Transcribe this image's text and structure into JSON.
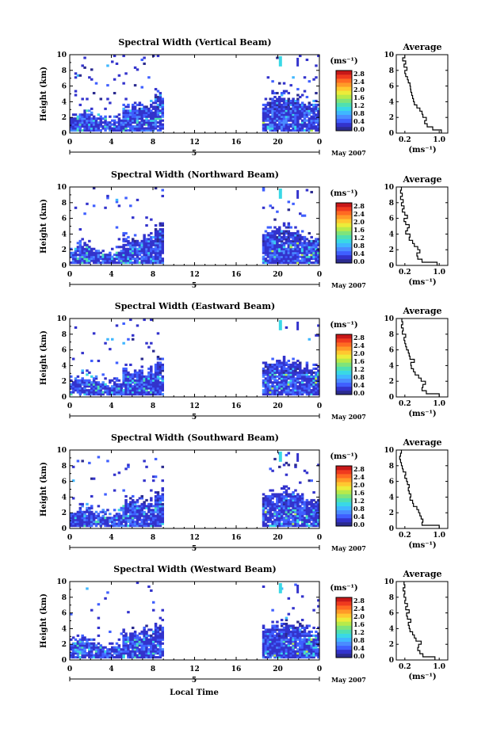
{
  "chart_data": [
    {
      "type": "heatmap",
      "title": "Spectral Width (Vertical Beam)",
      "ylabel": "Height (km)",
      "y_ticks": [
        "0",
        "2",
        "4",
        "6",
        "8",
        "10"
      ],
      "x_ticks": [
        "0",
        "4",
        "8",
        "12",
        "16",
        "20",
        "0"
      ],
      "day_label": "5",
      "month_label": "May 2007",
      "colorbar_unit": "(ms⁻¹)",
      "colorbar_ticks": [
        "2.8",
        "2.4",
        "2.0",
        "1.6",
        "1.2",
        "0.8",
        "0.4",
        "0.0"
      ],
      "data_windows_hours": [
        [
          0,
          9
        ],
        [
          18.5,
          24
        ]
      ],
      "profile": {
        "title": "Average",
        "x_ticks": [
          "0.2",
          "1.0"
        ],
        "xlabel": "(ms⁻¹)",
        "xlim": [
          0.0,
          1.2
        ],
        "ylim": [
          0,
          10
        ],
        "heights_km": [
          0.2,
          0.6,
          1.0,
          1.4,
          1.8,
          2.2,
          2.6,
          3.0,
          3.4,
          3.8,
          4.2,
          4.6,
          5.0,
          5.4,
          5.8,
          6.2,
          6.6,
          7.0,
          7.4,
          7.8,
          8.2,
          8.6,
          9.0,
          9.4,
          9.8
        ],
        "values": [
          1.05,
          0.85,
          0.72,
          0.66,
          0.7,
          0.62,
          0.6,
          0.55,
          0.48,
          0.42,
          0.4,
          0.38,
          0.36,
          0.34,
          0.33,
          0.32,
          0.28,
          0.26,
          0.22,
          0.2,
          0.25,
          0.18,
          0.22,
          0.15,
          0.2
        ]
      }
    },
    {
      "type": "heatmap",
      "title": "Spectral Width (Northward Beam)",
      "ylabel": "Height (km)",
      "y_ticks": [
        "0",
        "2",
        "4",
        "6",
        "8",
        "10"
      ],
      "x_ticks": [
        "0",
        "4",
        "8",
        "12",
        "16",
        "20",
        "0"
      ],
      "day_label": "5",
      "month_label": "May 2007",
      "colorbar_unit": "(ms⁻¹)",
      "colorbar_ticks": [
        "2.8",
        "2.4",
        "2.0",
        "1.6",
        "1.2",
        "0.8",
        "0.4",
        "0.0"
      ],
      "data_windows_hours": [
        [
          0,
          9
        ],
        [
          18.5,
          24
        ]
      ],
      "profile": {
        "title": "Average",
        "x_ticks": [
          "0.2",
          "1.0"
        ],
        "xlabel": "(ms⁻¹)",
        "xlim": [
          0.0,
          1.2
        ],
        "ylim": [
          0,
          10
        ],
        "heights_km": [
          0.2,
          0.6,
          1.0,
          1.4,
          1.8,
          2.2,
          2.6,
          3.0,
          3.4,
          3.8,
          4.2,
          4.6,
          5.0,
          5.4,
          5.8,
          6.2,
          6.6,
          7.0,
          7.4,
          7.8,
          8.2,
          8.6,
          9.0,
          9.4,
          9.8
        ],
        "values": [
          0.95,
          0.6,
          0.5,
          0.48,
          0.55,
          0.5,
          0.42,
          0.38,
          0.3,
          0.32,
          0.22,
          0.26,
          0.3,
          0.22,
          0.18,
          0.26,
          0.2,
          0.14,
          0.18,
          0.12,
          0.16,
          0.1,
          0.14,
          0.1,
          0.12
        ]
      }
    },
    {
      "type": "heatmap",
      "title": "Spectral Width (Eastward Beam)",
      "ylabel": "Height (km)",
      "y_ticks": [
        "0",
        "2",
        "4",
        "6",
        "8",
        "10"
      ],
      "x_ticks": [
        "0",
        "4",
        "8",
        "12",
        "16",
        "20",
        "0"
      ],
      "day_label": "5",
      "month_label": "May 2007",
      "colorbar_unit": "(ms⁻¹)",
      "colorbar_ticks": [
        "2.8",
        "2.4",
        "2.0",
        "1.6",
        "1.2",
        "0.8",
        "0.4",
        "0.0"
      ],
      "data_windows_hours": [
        [
          0,
          9
        ],
        [
          18.5,
          24
        ]
      ],
      "profile": {
        "title": "Average",
        "x_ticks": [
          "0.2",
          "1.0"
        ],
        "xlabel": "(ms⁻¹)",
        "xlim": [
          0.0,
          1.2
        ],
        "ylim": [
          0,
          10
        ],
        "heights_km": [
          0.2,
          0.6,
          1.0,
          1.4,
          1.8,
          2.2,
          2.6,
          3.0,
          3.4,
          3.8,
          4.2,
          4.6,
          5.0,
          5.4,
          5.8,
          6.2,
          6.6,
          7.0,
          7.4,
          7.8,
          8.2,
          8.6,
          9.0,
          9.4,
          9.8
        ],
        "values": [
          1.0,
          0.7,
          0.6,
          0.62,
          0.68,
          0.58,
          0.52,
          0.44,
          0.4,
          0.35,
          0.34,
          0.42,
          0.32,
          0.3,
          0.28,
          0.24,
          0.22,
          0.2,
          0.18,
          0.22,
          0.14,
          0.16,
          0.12,
          0.15,
          0.13
        ]
      }
    },
    {
      "type": "heatmap",
      "title": "Spectral Width (Southward Beam)",
      "ylabel": "Height (km)",
      "y_ticks": [
        "0",
        "2",
        "4",
        "6",
        "8",
        "10"
      ],
      "x_ticks": [
        "0",
        "4",
        "8",
        "12",
        "16",
        "20",
        "0"
      ],
      "day_label": "5",
      "month_label": "May 2007",
      "colorbar_unit": "(ms⁻¹)",
      "colorbar_ticks": [
        "2.8",
        "2.4",
        "2.0",
        "1.6",
        "1.2",
        "0.8",
        "0.4",
        "0.0"
      ],
      "data_windows_hours": [
        [
          0,
          9
        ],
        [
          18.5,
          24
        ]
      ],
      "profile": {
        "title": "Average",
        "x_ticks": [
          "0.2",
          "1.0"
        ],
        "xlabel": "(ms⁻¹)",
        "xlim": [
          0.0,
          1.2
        ],
        "ylim": [
          0,
          10
        ],
        "heights_km": [
          0.2,
          0.6,
          1.0,
          1.4,
          1.8,
          2.2,
          2.6,
          3.0,
          3.4,
          3.8,
          4.2,
          4.6,
          5.0,
          5.4,
          5.8,
          6.2,
          6.6,
          7.0,
          7.4,
          7.8,
          8.2,
          8.6,
          9.0,
          9.4,
          9.8
        ],
        "values": [
          1.0,
          0.6,
          0.62,
          0.58,
          0.55,
          0.52,
          0.48,
          0.4,
          0.38,
          0.32,
          0.34,
          0.3,
          0.28,
          0.3,
          0.26,
          0.24,
          0.2,
          0.22,
          0.16,
          0.14,
          0.12,
          0.1,
          0.08,
          0.1,
          0.12
        ]
      }
    },
    {
      "type": "heatmap",
      "title": "Spectral Width (Westward Beam)",
      "ylabel": "Height (km)",
      "y_ticks": [
        "0",
        "2",
        "4",
        "6",
        "8",
        "10"
      ],
      "x_ticks": [
        "0",
        "4",
        "8",
        "12",
        "16",
        "20",
        "0"
      ],
      "day_label": "5",
      "month_label": "May 2007",
      "colorbar_unit": "(ms⁻¹)",
      "colorbar_ticks": [
        "2.8",
        "2.4",
        "2.0",
        "1.6",
        "1.2",
        "0.8",
        "0.4",
        "0.0"
      ],
      "data_windows_hours": [
        [
          0,
          9
        ],
        [
          18.5,
          24
        ]
      ],
      "xlabel": "Local Time",
      "profile": {
        "title": "Average",
        "x_ticks": [
          "0.2",
          "1.0"
        ],
        "xlabel": "(ms⁻¹)",
        "xlim": [
          0.0,
          1.2
        ],
        "ylim": [
          0,
          10
        ],
        "heights_km": [
          0.2,
          0.6,
          1.0,
          1.4,
          1.8,
          2.2,
          2.6,
          3.0,
          3.4,
          3.8,
          4.2,
          4.6,
          5.0,
          5.4,
          5.8,
          6.2,
          6.6,
          7.0,
          7.4,
          7.8,
          8.2,
          8.6,
          9.0,
          9.4,
          9.8
        ],
        "values": [
          0.9,
          0.62,
          0.55,
          0.5,
          0.52,
          0.58,
          0.46,
          0.42,
          0.38,
          0.32,
          0.3,
          0.28,
          0.34,
          0.26,
          0.24,
          0.3,
          0.22,
          0.26,
          0.2,
          0.22,
          0.18,
          0.2,
          0.16,
          0.2,
          0.18
        ]
      }
    }
  ],
  "colormap": [
    "#2b2b8f",
    "#3333cc",
    "#3f5fff",
    "#4a8cff",
    "#3fb7ff",
    "#39d8e6",
    "#4fe0b0",
    "#7fe47a",
    "#b8ea4a",
    "#ecec3a",
    "#ffc830",
    "#ff9a28",
    "#ff6a22",
    "#f03a1e",
    "#c81818"
  ]
}
